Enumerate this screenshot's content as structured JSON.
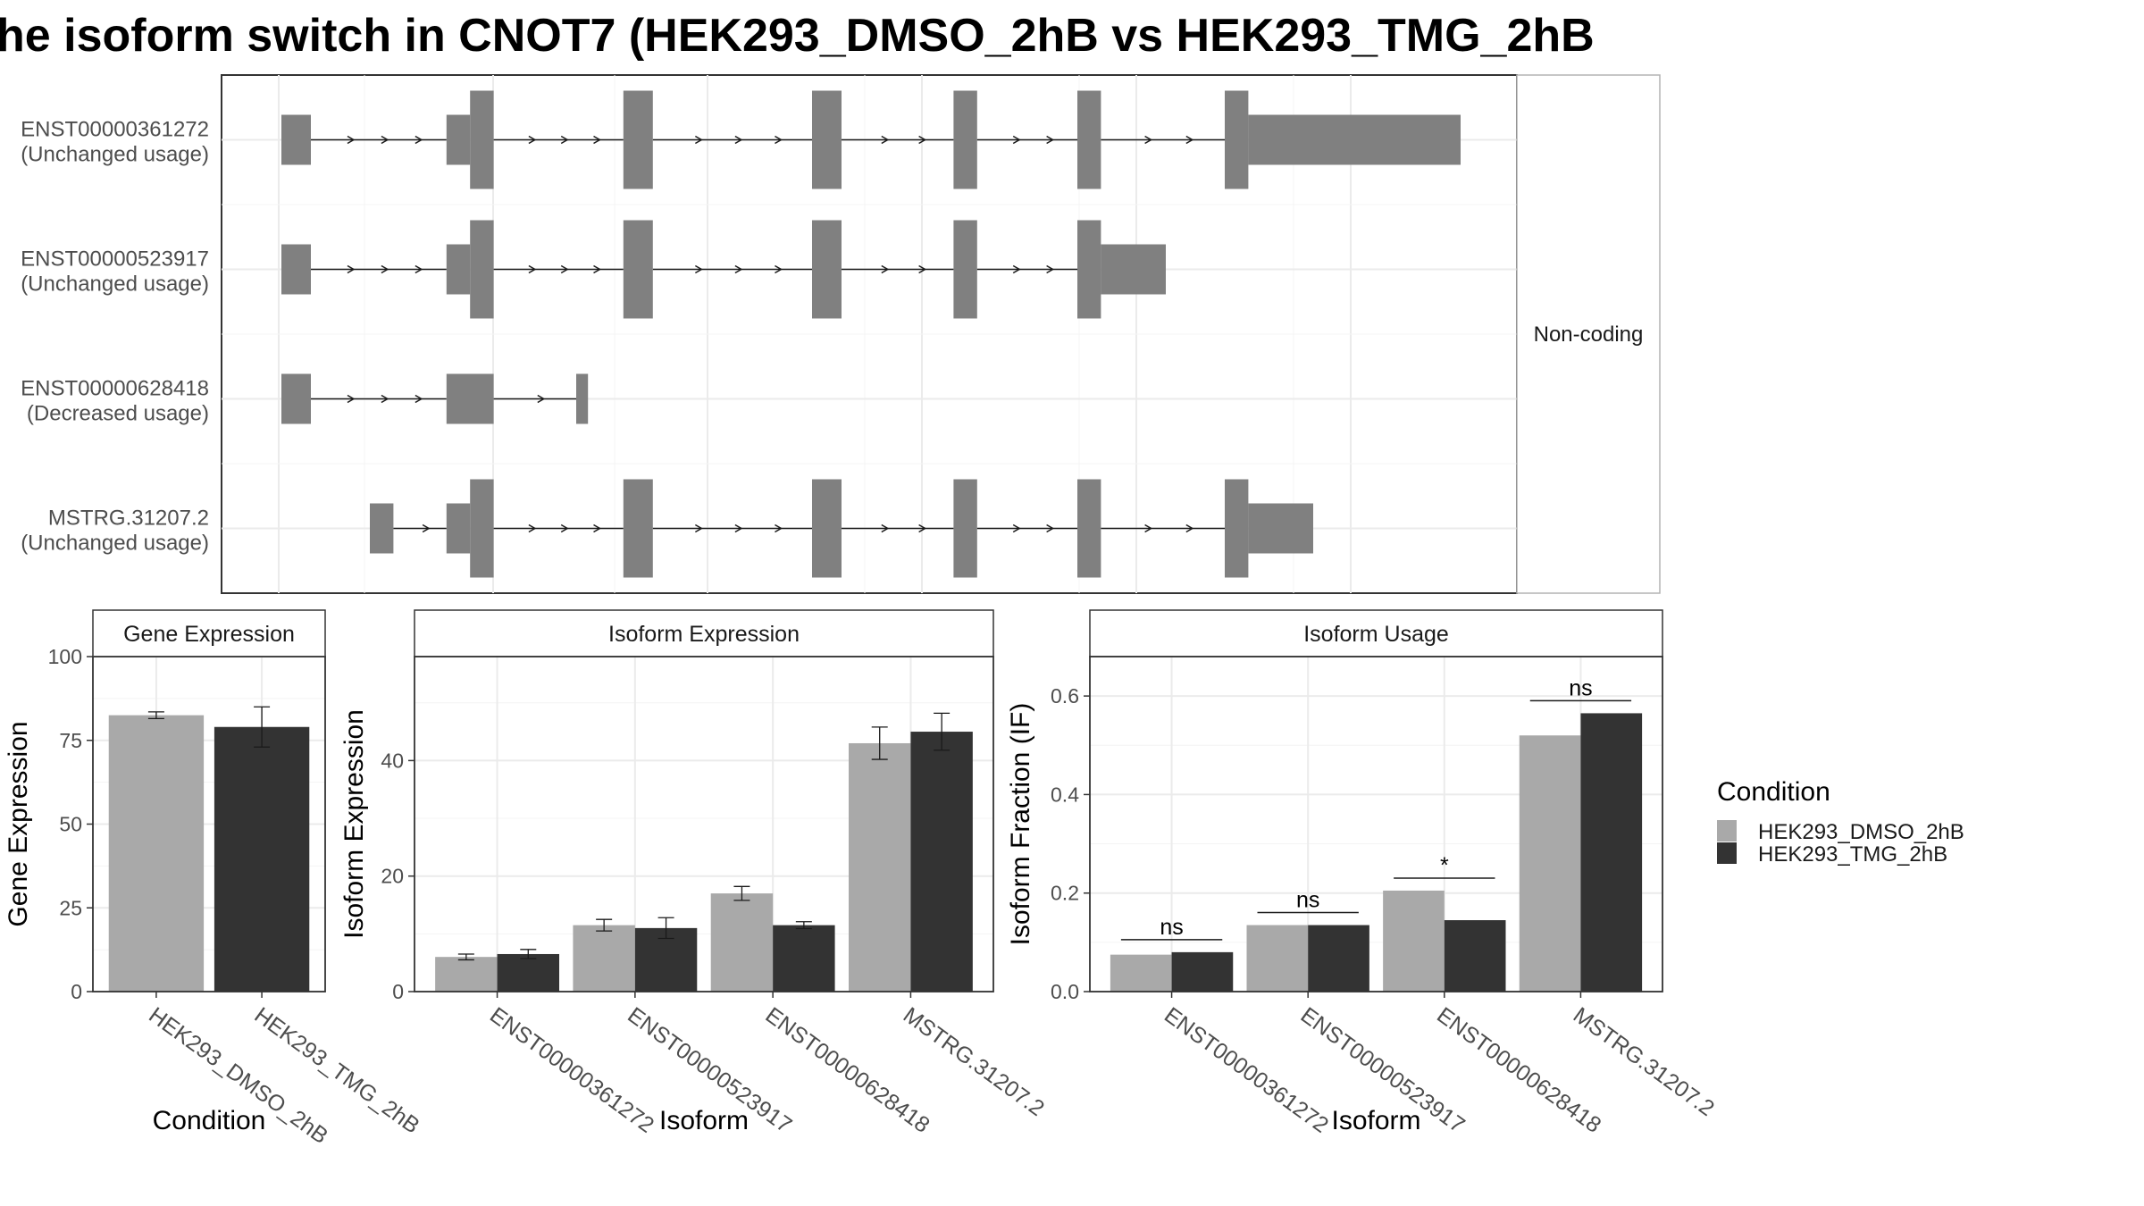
{
  "title": "he isoform switch in CNOT7 (HEK293_DMSO_2hB vs HEK293_TMG_2hB",
  "colors": {
    "dmso": "#a9a9a9",
    "tmg": "#333333",
    "exon": "#808080",
    "grid": "#ebebeb",
    "frame": "#333333"
  },
  "structure": {
    "strip_label": "Non-coding",
    "coord_range": [
      0,
      100
    ],
    "tracks": [
      {
        "id": "ENST00000361272",
        "usage": "(Unchanged usage)",
        "exons": [
          [
            0,
            2.5,
            "utr"
          ],
          [
            14,
            16,
            "utr"
          ],
          [
            16,
            18,
            "cds"
          ],
          [
            29,
            31.5,
            "cds"
          ],
          [
            45,
            47.5,
            "cds"
          ],
          [
            57,
            59,
            "cds"
          ],
          [
            67.5,
            69.5,
            "cds"
          ],
          [
            80,
            82,
            "cds"
          ],
          [
            82,
            100,
            "utr"
          ]
        ],
        "intron_end": 80
      },
      {
        "id": "ENST00000523917",
        "usage": "(Unchanged usage)",
        "exons": [
          [
            0,
            2.5,
            "utr"
          ],
          [
            14,
            16,
            "utr"
          ],
          [
            16,
            18,
            "cds"
          ],
          [
            29,
            31.5,
            "cds"
          ],
          [
            45,
            47.5,
            "cds"
          ],
          [
            57,
            59,
            "cds"
          ],
          [
            67.5,
            69.5,
            "cds"
          ],
          [
            69.5,
            75,
            "utr"
          ]
        ],
        "intron_end": 67.5
      },
      {
        "id": "ENST00000628418",
        "usage": "(Decreased usage)",
        "exons": [
          [
            0,
            2.5,
            "utr"
          ],
          [
            14,
            18,
            "utr"
          ],
          [
            25,
            26,
            "utr"
          ]
        ],
        "intron_end": 25
      },
      {
        "id": "MSTRG.31207.2",
        "usage": "(Unchanged usage)",
        "exons": [
          [
            7.5,
            9.5,
            "utr"
          ],
          [
            14,
            16,
            "utr"
          ],
          [
            16,
            18,
            "cds"
          ],
          [
            29,
            31.5,
            "cds"
          ],
          [
            45,
            47.5,
            "cds"
          ],
          [
            57,
            59,
            "cds"
          ],
          [
            67.5,
            69.5,
            "cds"
          ],
          [
            80,
            82,
            "cds"
          ],
          [
            82,
            87.5,
            "utr"
          ]
        ],
        "intron_end": 80
      }
    ]
  },
  "legend": {
    "title": "Condition",
    "items": [
      "HEK293_DMSO_2hB",
      "HEK293_TMG_2hB"
    ]
  },
  "chart_data": [
    {
      "type": "bar",
      "title": "Gene Expression",
      "xlabel": "Condition",
      "ylabel": "Gene Expression",
      "categories": [
        "HEK293_DMSO_2hB",
        "HEK293_TMG_2hB"
      ],
      "values": [
        82.5,
        79.0
      ],
      "errors": [
        1.0,
        6.0
      ],
      "ylim": [
        0,
        100
      ],
      "yticks": [
        0,
        25,
        50,
        75,
        100
      ]
    },
    {
      "type": "bar",
      "title": "Isoform Expression",
      "xlabel": "Isoform",
      "ylabel": "Isoform Expression",
      "categories": [
        "ENST00000361272",
        "ENST00000523917",
        "ENST00000628418",
        "MSTRG.31207.2"
      ],
      "series": [
        {
          "name": "HEK293_DMSO_2hB",
          "values": [
            6.0,
            11.5,
            17.0,
            43.0
          ],
          "errors": [
            0.5,
            1.0,
            1.2,
            2.8
          ]
        },
        {
          "name": "HEK293_TMG_2hB",
          "values": [
            6.5,
            11.0,
            11.5,
            45.0
          ],
          "errors": [
            0.8,
            1.8,
            0.6,
            3.2
          ]
        }
      ],
      "ylim": [
        0,
        58
      ],
      "yticks": [
        0,
        20,
        40
      ]
    },
    {
      "type": "bar",
      "title": "Isoform Usage",
      "xlabel": "Isoform",
      "ylabel": "Isoform Fraction (IF)",
      "categories": [
        "ENST00000361272",
        "ENST00000523917",
        "ENST00000628418",
        "MSTRG.31207.2"
      ],
      "series": [
        {
          "name": "HEK293_DMSO_2hB",
          "values": [
            0.075,
            0.135,
            0.205,
            0.52
          ]
        },
        {
          "name": "HEK293_TMG_2hB",
          "values": [
            0.08,
            0.135,
            0.145,
            0.565
          ]
        }
      ],
      "significance": [
        "ns",
        "ns",
        "*",
        "ns"
      ],
      "ylim": [
        0,
        0.68
      ],
      "yticks": [
        0.0,
        0.2,
        0.4,
        0.6
      ],
      "ytick_labels": [
        "0.0",
        "0.2",
        "0.4",
        "0.6"
      ]
    }
  ]
}
